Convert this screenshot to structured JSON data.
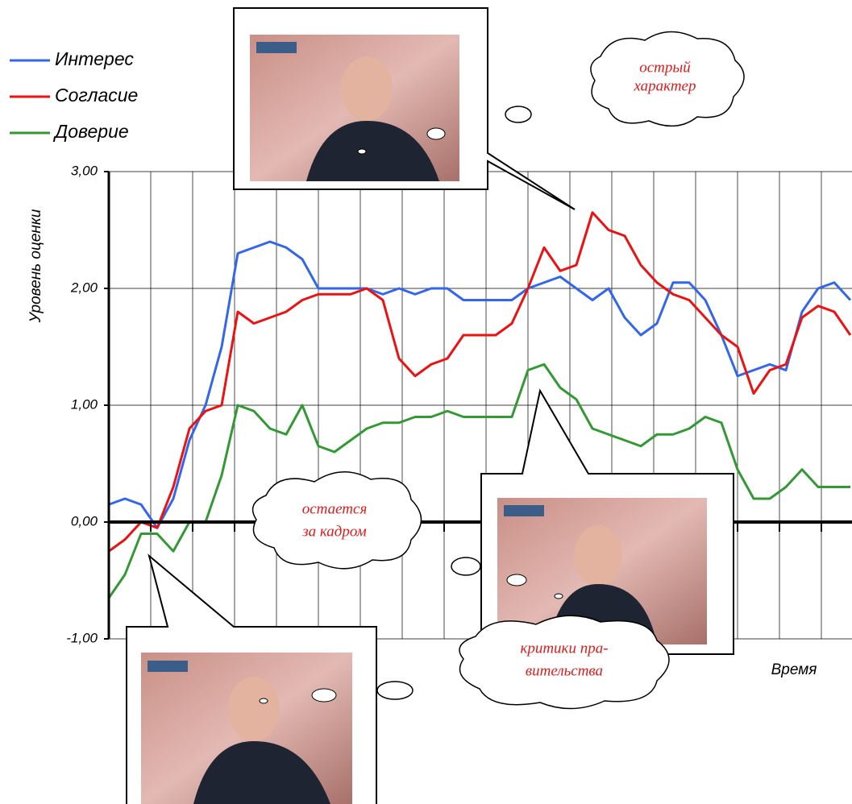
{
  "chart_data": {
    "type": "line",
    "y_axis_label": "Уровень оценки",
    "x_axis_label": "Время",
    "ylim": [
      -1,
      3
    ],
    "yticks": [
      {
        "value": -1,
        "label": "-1,00"
      },
      {
        "value": 0,
        "label": "0,00"
      },
      {
        "value": 1,
        "label": "1,00"
      },
      {
        "value": 2,
        "label": "2,00"
      },
      {
        "value": 3,
        "label": "3,00"
      }
    ],
    "grid": true,
    "legend": "top-left",
    "categories": [
      null,
      null,
      null,
      null,
      null,
      null,
      null,
      null,
      null,
      null,
      null,
      null,
      null,
      null,
      null,
      null,
      null,
      null,
      null,
      null,
      null,
      null,
      null,
      null,
      null,
      null,
      null,
      null,
      null,
      null,
      null,
      null,
      null,
      null,
      null,
      null,
      null,
      null,
      null,
      null,
      null,
      null,
      null,
      null,
      null,
      null,
      null
    ],
    "series": [
      {
        "name": "Интерес",
        "color": "#3366ee",
        "values": [
          0.15,
          0.2,
          0.15,
          -0.05,
          0.2,
          0.7,
          1.0,
          1.5,
          2.3,
          2.35,
          2.4,
          2.35,
          2.25,
          2.0,
          2.0,
          2.0,
          2.0,
          1.95,
          2.0,
          1.95,
          2.0,
          2.0,
          1.9,
          1.9,
          1.9,
          1.9,
          2.0,
          2.05,
          2.1,
          2.0,
          1.9,
          2.0,
          1.75,
          1.6,
          1.7,
          2.05,
          2.05,
          1.9,
          1.6,
          1.25,
          1.3,
          1.35,
          1.3,
          1.8,
          2.0,
          2.05,
          1.9
        ]
      },
      {
        "name": "Согласие",
        "color": "#ee1111",
        "values": [
          -0.25,
          -0.15,
          0.0,
          -0.05,
          0.3,
          0.8,
          0.95,
          1.0,
          1.8,
          1.7,
          1.75,
          1.8,
          1.9,
          1.95,
          1.95,
          1.95,
          2.0,
          1.9,
          1.4,
          1.25,
          1.35,
          1.4,
          1.6,
          1.6,
          1.6,
          1.7,
          2.0,
          2.35,
          2.15,
          2.2,
          2.65,
          2.5,
          2.45,
          2.2,
          2.05,
          1.95,
          1.9,
          1.75,
          1.6,
          1.5,
          1.1,
          1.3,
          1.35,
          1.75,
          1.85,
          1.8,
          1.6
        ]
      },
      {
        "name": "Доверие",
        "color": "#339933",
        "values": [
          -0.65,
          -0.45,
          -0.1,
          -0.1,
          -0.25,
          0.0,
          0.0,
          0.4,
          1.0,
          0.95,
          0.8,
          0.75,
          1.0,
          0.65,
          0.6,
          0.7,
          0.8,
          0.85,
          0.85,
          0.9,
          0.9,
          0.95,
          0.9,
          0.9,
          0.9,
          0.9,
          1.3,
          1.35,
          1.15,
          1.05,
          0.8,
          0.75,
          0.7,
          0.65,
          0.75,
          0.75,
          0.8,
          0.9,
          0.85,
          0.45,
          0.2,
          0.2,
          0.3,
          0.45,
          0.3,
          0.3,
          0.3
        ]
      }
    ],
    "annotations": [
      {
        "lines": [
          "острый",
          "характер"
        ]
      },
      {
        "lines": [
          "остается",
          "за кадром"
        ]
      },
      {
        "lines": [
          "критики пра-",
          "вительства"
        ]
      }
    ]
  }
}
